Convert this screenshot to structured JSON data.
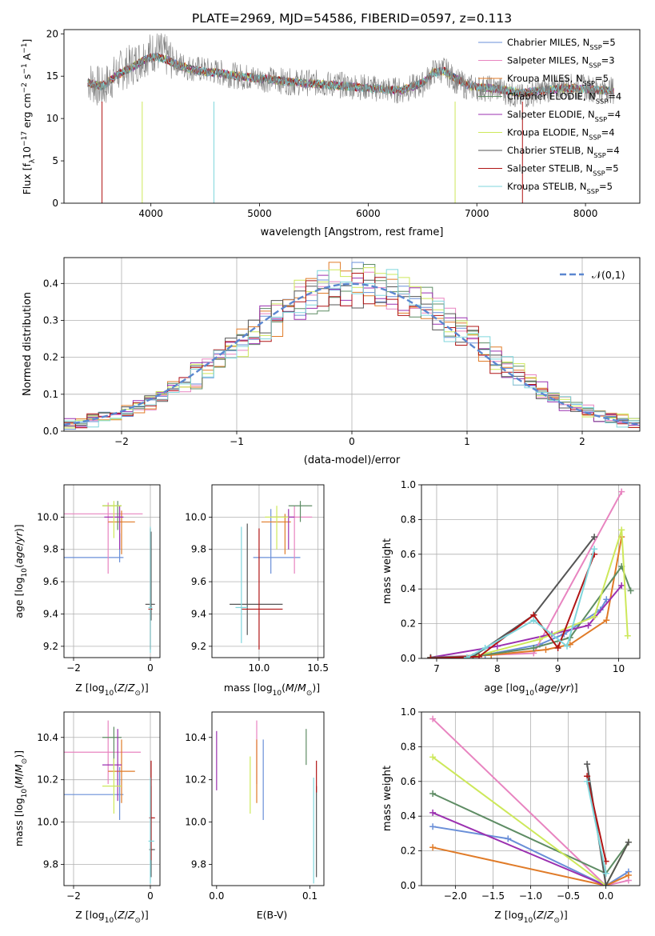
{
  "figure_title": "PLATE=2969, MJD=54586, FIBERID=0597, z=0.113",
  "colors": {
    "Chabrier MILES": "#6a8fd8",
    "Salpeter MILES": "#e884c0",
    "Kroupa MILES": "#e07b28",
    "Chabrier ELODIE": "#5e8c64",
    "Salpeter ELODIE": "#9b30b0",
    "Kroupa ELODIE": "#cde85a",
    "Chabrier STELIB": "#555555",
    "Salpeter STELIB": "#b01515",
    "Kroupa STELIB": "#7fd6dc"
  },
  "chart_data": [
    {
      "id": "spectrum",
      "type": "line",
      "title": "PLATE=2969, MJD=54586, FIBERID=0597, z=0.113",
      "xlabel": "wavelength [Angstrom, rest frame]",
      "ylabel": "Flux [f_λ10^-17 erg cm^-2 s^-1 A^-1]",
      "xlim": [
        3200,
        8500
      ],
      "ylim": [
        0,
        20.5
      ],
      "xticks": [
        4000,
        5000,
        6000,
        7000,
        8000
      ],
      "yticks": [
        0,
        5,
        10,
        15,
        20
      ],
      "grid": false,
      "legend_position": "upper right",
      "legend": [
        "Chabrier MILES, N_SSP=5",
        "Salpeter MILES, N_SSP=3",
        "Kroupa MILES, N_SSP=5",
        "Chabrier ELODIE, N_SSP=4",
        "Salpeter ELODIE, N_SSP=4",
        "Kroupa ELODIE, N_SSP=4",
        "Chabrier STELIB, N_SSP=4",
        "Salpeter STELIB, N_SSP=5",
        "Kroupa STELIB, N_SSP=5"
      ],
      "series": [
        {
          "name": "data",
          "x": [
            3420,
            3550,
            3700,
            3850,
            3950,
            4050,
            4150,
            4250,
            4350,
            4450,
            4600,
            4800,
            4950,
            5100,
            5300,
            5500,
            5700,
            5900,
            6100,
            6300,
            6500,
            6600,
            6700,
            6800,
            6900,
            7000,
            7200,
            7400,
            7600,
            7800,
            8000,
            8200,
            8260
          ],
          "y": [
            14.5,
            13.5,
            15.5,
            16.5,
            17.5,
            18.0,
            17.3,
            16.5,
            16.0,
            15.8,
            15.5,
            15.0,
            14.8,
            14.6,
            14.3,
            14.2,
            14.0,
            13.8,
            13.5,
            13.3,
            14.0,
            15.5,
            15.8,
            14.5,
            13.8,
            13.6,
            13.5,
            12.5,
            13.3,
            13.8,
            13.6,
            13.4,
            13.3
          ]
        },
        {
          "name": "model",
          "x": [
            3420,
            3550,
            3700,
            3850,
            3950,
            4050,
            4150,
            4250,
            4350,
            4450,
            4600,
            4800,
            4950,
            5100,
            5300,
            5500,
            5700,
            5900,
            6100,
            6300,
            6500,
            6600,
            6700,
            6800,
            6900,
            7000,
            7200,
            7400,
            7600,
            7800,
            8000,
            8200,
            8260
          ],
          "y": [
            14.2,
            13.8,
            15.2,
            16.2,
            17.0,
            17.3,
            16.9,
            16.3,
            15.9,
            15.6,
            15.4,
            15.0,
            14.8,
            14.6,
            14.3,
            14.1,
            13.9,
            13.7,
            13.5,
            13.3,
            14.2,
            15.4,
            15.6,
            14.8,
            14.0,
            13.7,
            13.5,
            13.0,
            13.3,
            13.6,
            13.5,
            13.3,
            13.2
          ]
        }
      ]
    },
    {
      "id": "residuals",
      "type": "line",
      "xlabel": "(data-model)/error",
      "ylabel": "Normed distribution",
      "xlim": [
        -2.5,
        2.5
      ],
      "ylim": [
        0,
        0.47
      ],
      "xticks": [
        -2,
        -1,
        0,
        1,
        2
      ],
      "yticks": [
        0.0,
        0.1,
        0.2,
        0.3,
        0.4
      ],
      "grid": true,
      "legend_position": "upper right",
      "legend": [
        "𝒩(0,1)"
      ],
      "gaussian": {
        "mean": 0,
        "sigma": 1
      },
      "hist_bin_width": 0.1,
      "hist_start": -2.5
    },
    {
      "id": "Z_vs_age",
      "type": "scatter",
      "xlabel": "Z [log10(Z/Z☉)]",
      "ylabel": "age  [log10(age/yr)]",
      "xlim": [
        -2.25,
        0.25
      ],
      "ylim": [
        9.13,
        10.2
      ],
      "xticks": [
        -2,
        0
      ],
      "yticks": [
        9.2,
        9.4,
        9.6,
        9.8,
        10.0
      ],
      "grid": true,
      "points": [
        {
          "name": "Chabrier MILES",
          "x": -0.8,
          "xerr": [
            1.95,
            0.1
          ],
          "y": 9.75,
          "yerr": [
            0.03,
            0.15
          ]
        },
        {
          "name": "Salpeter MILES",
          "x": -1.1,
          "xerr": [
            2.1,
            0.9
          ],
          "y": 10.02,
          "yerr": [
            0.37,
            0.07
          ]
        },
        {
          "name": "Kroupa MILES",
          "x": -0.75,
          "xerr": [
            0.35,
            0.35
          ],
          "y": 9.97,
          "yerr": [
            0.2,
            0.07
          ]
        },
        {
          "name": "Chabrier ELODIE",
          "x": -0.85,
          "xerr": [
            0.4,
            0.1
          ],
          "y": 10.07,
          "yerr": [
            0.15,
            0.03
          ]
        },
        {
          "name": "Salpeter ELODIE",
          "x": -0.8,
          "xerr": [
            0.4,
            0.1
          ],
          "y": 10.0,
          "yerr": [
            0.2,
            0.07
          ]
        },
        {
          "name": "Kroupa ELODIE",
          "x": -0.95,
          "xerr": [
            0.3,
            0.2
          ],
          "y": 10.07,
          "yerr": [
            0.2,
            0.03
          ]
        },
        {
          "name": "Chabrier STELIB",
          "x": 0.02,
          "xerr": [
            0.15,
            0.1
          ],
          "y": 9.46,
          "yerr": [
            0.1,
            0.45
          ]
        },
        {
          "name": "Salpeter STELIB",
          "x": 0.0,
          "xerr": [
            0.05,
            0.05
          ],
          "y": 9.43,
          "yerr": [
            0.25,
            0.5
          ]
        },
        {
          "name": "Kroupa STELIB",
          "x": 0.0,
          "xerr": [
            0.05,
            0.05
          ],
          "y": 9.44,
          "yerr": [
            0.28,
            0.5
          ]
        }
      ]
    },
    {
      "id": "mass_vs_age",
      "type": "scatter",
      "xlabel": "mass [log10(M/M☉)]",
      "ylabel": "",
      "xlim": [
        9.6,
        10.55
      ],
      "ylim": [
        9.13,
        10.2
      ],
      "xticks": [
        10.0,
        10.5
      ],
      "yticks": [
        9.2,
        9.4,
        9.6,
        9.8,
        10.0
      ],
      "grid": true,
      "points": [
        {
          "name": "Chabrier MILES",
          "x": 10.1,
          "xerr": [
            0.15,
            0.25
          ],
          "y": 9.75,
          "yerr": [
            0.1,
            0.3
          ]
        },
        {
          "name": "Salpeter MILES",
          "x": 10.3,
          "xerr": [
            0.1,
            0.15
          ],
          "y": 10.0,
          "yerr": [
            0.35,
            0.07
          ]
        },
        {
          "name": "Kroupa MILES",
          "x": 10.22,
          "xerr": [
            0.2,
            0.05
          ],
          "y": 9.97,
          "yerr": [
            0.2,
            0.05
          ]
        },
        {
          "name": "Chabrier ELODIE",
          "x": 10.35,
          "xerr": [
            0.1,
            0.1
          ],
          "y": 10.07,
          "yerr": [
            0.1,
            0.03
          ]
        },
        {
          "name": "Salpeter ELODIE",
          "x": 10.25,
          "xerr": [
            0.15,
            0.05
          ],
          "y": 10.0,
          "yerr": [
            0.2,
            0.05
          ]
        },
        {
          "name": "Kroupa ELODIE",
          "x": 10.15,
          "xerr": [
            0.1,
            0.1
          ],
          "y": 10.0,
          "yerr": [
            0.2,
            0.07
          ]
        },
        {
          "name": "Chabrier STELIB",
          "x": 9.9,
          "xerr": [
            0.15,
            0.3
          ],
          "y": 9.46,
          "yerr": [
            0.19,
            0.5
          ]
        },
        {
          "name": "Salpeter STELIB",
          "x": 10.0,
          "xerr": [
            0.15,
            0.2
          ],
          "y": 9.43,
          "yerr": [
            0.25,
            0.5
          ]
        },
        {
          "name": "Kroupa STELIB",
          "x": 9.85,
          "xerr": [
            0.05,
            0.05
          ],
          "y": 9.44,
          "yerr": [
            0.22,
            0.5
          ]
        }
      ]
    },
    {
      "id": "age_vs_weight",
      "type": "line",
      "xlabel": "age  [log10(age/yr)]",
      "ylabel": "mass weight",
      "xlim": [
        6.75,
        10.35
      ],
      "ylim": [
        0,
        1.0
      ],
      "xticks": [
        7,
        8,
        9,
        10
      ],
      "yticks": [
        0.0,
        0.2,
        0.4,
        0.6,
        0.8,
        1.0
      ],
      "grid": true,
      "series": [
        {
          "name": "Chabrier MILES",
          "x": [
            6.9,
            7.8,
            8.7,
            9.1,
            9.7,
            9.8
          ],
          "y": [
            0.005,
            0.02,
            0.08,
            0.14,
            0.28,
            0.34
          ]
        },
        {
          "name": "Salpeter MILES",
          "x": [
            6.9,
            8.6,
            10.05
          ],
          "y": [
            0.005,
            0.03,
            0.96
          ]
        },
        {
          "name": "Kroupa MILES",
          "x": [
            6.9,
            7.9,
            8.8,
            9.2,
            9.8,
            10.05
          ],
          "y": [
            0.0,
            0.02,
            0.05,
            0.08,
            0.22,
            0.7
          ]
        },
        {
          "name": "Chabrier ELODIE",
          "x": [
            6.9,
            7.6,
            8.6,
            9.2,
            10.05,
            10.2
          ],
          "y": [
            0.005,
            0.01,
            0.06,
            0.12,
            0.53,
            0.39
          ]
        },
        {
          "name": "Salpeter ELODIE",
          "x": [
            6.9,
            8.0,
            8.9,
            9.5,
            10.05
          ],
          "y": [
            0.005,
            0.07,
            0.14,
            0.19,
            0.42
          ]
        },
        {
          "name": "Kroupa ELODIE",
          "x": [
            6.9,
            7.6,
            8.7,
            9.6,
            10.05,
            10.15
          ],
          "y": [
            0.005,
            0.01,
            0.11,
            0.24,
            0.74,
            0.13
          ]
        },
        {
          "name": "Chabrier STELIB",
          "x": [
            6.9,
            7.6,
            8.6,
            9.6
          ],
          "y": [
            0.005,
            0.01,
            0.25,
            0.7
          ]
        },
        {
          "name": "Salpeter STELIB",
          "x": [
            6.9,
            7.7,
            8.6,
            9.0,
            9.6
          ],
          "y": [
            0.0,
            0.01,
            0.25,
            0.06,
            0.6
          ]
        },
        {
          "name": "Kroupa STELIB",
          "x": [
            7.5,
            7.8,
            8.6,
            9.15,
            9.6
          ],
          "y": [
            0.005,
            0.06,
            0.22,
            0.07,
            0.63
          ]
        }
      ]
    },
    {
      "id": "Z_vs_mass",
      "type": "scatter",
      "xlabel": "Z [log10(Z/Z☉)]",
      "ylabel": "mass [log10(M/M☉)]",
      "xlim": [
        -2.25,
        0.25
      ],
      "ylim": [
        9.7,
        10.52
      ],
      "xticks": [
        -2,
        0
      ],
      "yticks": [
        9.8,
        10.0,
        10.2,
        10.4
      ],
      "grid": true,
      "points": [
        {
          "name": "Chabrier MILES",
          "x": -0.8,
          "xerr": [
            1.95,
            0.1
          ],
          "y": 10.13,
          "yerr": [
            0.12,
            0.13
          ]
        },
        {
          "name": "Salpeter MILES",
          "x": -1.1,
          "xerr": [
            2.1,
            0.85
          ],
          "y": 10.33,
          "yerr": [
            0.15,
            0.15
          ]
        },
        {
          "name": "Kroupa MILES",
          "x": -0.75,
          "xerr": [
            0.35,
            0.35
          ],
          "y": 10.24,
          "yerr": [
            0.15,
            0.15
          ]
        },
        {
          "name": "Chabrier ELODIE",
          "x": -0.95,
          "xerr": [
            0.3,
            0.2
          ],
          "y": 10.4,
          "yerr": [
            0.15,
            0.05
          ]
        },
        {
          "name": "Salpeter ELODIE",
          "x": -0.85,
          "xerr": [
            0.4,
            0.1
          ],
          "y": 10.27,
          "yerr": [
            0.17,
            0.17
          ]
        },
        {
          "name": "Kroupa ELODIE",
          "x": -0.95,
          "xerr": [
            0.3,
            0.2
          ],
          "y": 10.17,
          "yerr": [
            0.13,
            0.13
          ]
        },
        {
          "name": "Chabrier STELIB",
          "x": 0.02,
          "xerr": [
            0.05,
            0.1
          ],
          "y": 9.87,
          "yerr": [
            0.13,
            0.3
          ]
        },
        {
          "name": "Salpeter STELIB",
          "x": 0.02,
          "xerr": [
            0.05,
            0.1
          ],
          "y": 10.02,
          "yerr": [
            0.2,
            0.27
          ]
        },
        {
          "name": "Kroupa STELIB",
          "x": 0.0,
          "xerr": [
            0.05,
            0.1
          ],
          "y": 9.91,
          "yerr": [
            0.2,
            0.3
          ]
        }
      ]
    },
    {
      "id": "ebv_vs_mass",
      "type": "scatter",
      "xlabel": "E(B-V)",
      "ylabel": "",
      "xlim": [
        -0.005,
        0.115
      ],
      "ylim": [
        9.7,
        10.52
      ],
      "xticks": [
        0.0,
        0.1
      ],
      "yticks": [
        9.8,
        10.0,
        10.2,
        10.4
      ],
      "grid": false,
      "points": [
        {
          "name": "Chabrier MILES",
          "x": 0.05,
          "y": 10.13,
          "yerr": [
            0.12,
            0.26
          ]
        },
        {
          "name": "Salpeter MILES",
          "x": 0.043,
          "y": 10.33,
          "yerr": [
            0.15,
            0.15
          ]
        },
        {
          "name": "Kroupa MILES",
          "x": 0.043,
          "y": 10.24,
          "yerr": [
            0.15,
            0.15
          ]
        },
        {
          "name": "Chabrier ELODIE",
          "x": 0.096,
          "y": 10.36,
          "yerr": [
            0.09,
            0.08
          ]
        },
        {
          "name": "Salpeter ELODIE",
          "x": 0.0,
          "y": 10.29,
          "yerr": [
            0.14,
            0.14
          ]
        },
        {
          "name": "Kroupa ELODIE",
          "x": 0.036,
          "y": 10.17,
          "yerr": [
            0.13,
            0.14
          ]
        },
        {
          "name": "Chabrier STELIB",
          "x": 0.107,
          "y": 9.87,
          "yerr": [
            0.13,
            0.3
          ]
        },
        {
          "name": "Salpeter STELIB",
          "x": 0.107,
          "y": 10.24,
          "yerr": [
            0.1,
            0.05
          ]
        },
        {
          "name": "Kroupa STELIB",
          "x": 0.104,
          "y": 9.91,
          "yerr": [
            0.2,
            0.3
          ]
        }
      ]
    },
    {
      "id": "Z_vs_weight",
      "type": "line",
      "xlabel": "Z [log10(Z/Z☉)]",
      "ylabel": "mass weight",
      "xlim": [
        -2.45,
        0.45
      ],
      "ylim": [
        0,
        1.0
      ],
      "xticks": [
        -2.0,
        -1.5,
        -1.0,
        -0.5,
        0.0
      ],
      "yticks": [
        0.0,
        0.2,
        0.4,
        0.6,
        0.8,
        1.0
      ],
      "grid": true,
      "series": [
        {
          "name": "Chabrier MILES",
          "x": [
            -2.3,
            -1.3,
            0.0,
            0.3
          ],
          "y": [
            0.34,
            0.27,
            0.0,
            0.08
          ]
        },
        {
          "name": "Salpeter MILES",
          "x": [
            -2.3,
            0.0,
            0.3
          ],
          "y": [
            0.96,
            0.0,
            0.03
          ]
        },
        {
          "name": "Kroupa MILES",
          "x": [
            -2.3,
            0.0,
            0.3
          ],
          "y": [
            0.22,
            0.0,
            0.06
          ]
        },
        {
          "name": "Chabrier ELODIE",
          "x": [
            -2.3,
            0.0,
            0.3
          ],
          "y": [
            0.53,
            0.07,
            0.25
          ]
        },
        {
          "name": "Salpeter ELODIE",
          "x": [
            -2.3,
            0.0
          ],
          "y": [
            0.42,
            0.0
          ]
        },
        {
          "name": "Kroupa ELODIE",
          "x": [
            -2.3,
            0.0,
            0.3
          ],
          "y": [
            0.74,
            0.0,
            0.25
          ]
        },
        {
          "name": "Chabrier STELIB",
          "x": [
            -0.25,
            0.0,
            0.3
          ],
          "y": [
            0.7,
            0.0,
            0.25
          ]
        },
        {
          "name": "Salpeter STELIB",
          "x": [
            -0.25,
            0.0
          ],
          "y": [
            0.63,
            0.14
          ]
        },
        {
          "name": "Kroupa STELIB",
          "x": [
            -0.25,
            0.0
          ],
          "y": [
            0.6,
            0.07
          ]
        }
      ]
    }
  ]
}
